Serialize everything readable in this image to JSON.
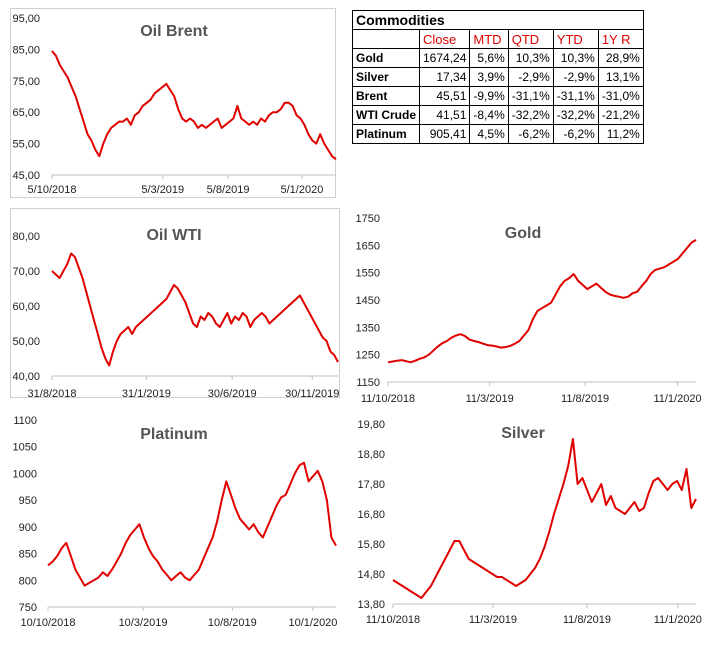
{
  "table": {
    "title": "Commodities",
    "headers": [
      "Close",
      "MTD",
      "QTD",
      "YTD",
      "1Y R"
    ],
    "rows": [
      {
        "name": "Gold",
        "values": [
          "1674,24",
          "5,6%",
          "10,3%",
          "10,3%",
          "28,9%"
        ]
      },
      {
        "name": "Silver",
        "values": [
          "17,34",
          "3,9%",
          "-2,9%",
          "-2,9%",
          "13,1%"
        ]
      },
      {
        "name": "Brent",
        "values": [
          "45,51",
          "-9,9%",
          "-31,1%",
          "-31,1%",
          "-31,0%"
        ]
      },
      {
        "name": "WTI Crude",
        "values": [
          "41,51",
          "-8,4%",
          "-32,2%",
          "-32,2%",
          "-21,2%"
        ]
      },
      {
        "name": "Platinum",
        "values": [
          "905,41",
          "4,5%",
          "-6,2%",
          "-6,2%",
          "11,2%"
        ]
      }
    ]
  },
  "line_color": "#e00000",
  "chart_data": [
    {
      "id": "brent",
      "type": "line",
      "title": "Oil Brent",
      "ylim": [
        45,
        95
      ],
      "yticks": [
        "95,00",
        "85,00",
        "75,00",
        "65,00",
        "55,00",
        "45,00"
      ],
      "xticks": [
        "5/10/2018",
        "5/3/2019",
        "5/8/2019",
        "5/1/2020"
      ],
      "xtick_pos": [
        0.0,
        0.39,
        0.62,
        0.88
      ],
      "series": [
        {
          "values": [
            84.5,
            83,
            80,
            78,
            76,
            73,
            70,
            66,
            62,
            58,
            56,
            53,
            51,
            55,
            58,
            60,
            61,
            62,
            62,
            63,
            61,
            64,
            65,
            67,
            68,
            69,
            71,
            72,
            73,
            74,
            72,
            70,
            66,
            63,
            62,
            63,
            62,
            60,
            61,
            60,
            61,
            62,
            63,
            60,
            61,
            62,
            63,
            67,
            63,
            62,
            61,
            62,
            61,
            63,
            62,
            64,
            65,
            65,
            66,
            68,
            68,
            67,
            64,
            63,
            61,
            58,
            56,
            55,
            58,
            55,
            53,
            51,
            50
          ]
        }
      ]
    },
    {
      "id": "wti",
      "type": "line",
      "title": "Oil WTI",
      "ylim": [
        40,
        80
      ],
      "yticks": [
        "80,00",
        "70,00",
        "60,00",
        "50,00",
        "40,00"
      ],
      "xticks": [
        "31/8/2018",
        "31/1/2019",
        "30/6/2019",
        "30/11/2019"
      ],
      "xtick_pos": [
        0.0,
        0.33,
        0.63,
        0.91
      ],
      "series": [
        {
          "values": [
            70,
            69,
            68,
            70,
            72,
            75,
            74,
            71,
            68,
            64,
            60,
            56,
            52,
            48,
            45,
            43,
            47,
            50,
            52,
            53,
            54,
            52,
            54,
            55,
            56,
            57,
            58,
            59,
            60,
            61,
            62,
            64,
            66,
            65,
            63,
            61,
            58,
            55,
            54,
            57,
            56,
            58,
            57,
            55,
            54,
            56,
            58,
            55,
            57,
            56,
            58,
            57,
            54,
            56,
            57,
            58,
            57,
            55,
            56,
            57,
            58,
            59,
            60,
            61,
            62,
            63,
            61,
            59,
            57,
            55,
            53,
            51,
            50,
            47,
            46,
            44
          ]
        }
      ]
    },
    {
      "id": "gold",
      "type": "line",
      "title": "Gold",
      "ylim": [
        1150,
        1750
      ],
      "yticks": [
        "1750",
        "1650",
        "1550",
        "1450",
        "1350",
        "1250",
        "1150"
      ],
      "xticks": [
        "11/10/2018",
        "11/3/2019",
        "11/8/2019",
        "11/1/2020"
      ],
      "xtick_pos": [
        0.0,
        0.33,
        0.64,
        0.94
      ],
      "series": [
        {
          "values": [
            1222,
            1225,
            1228,
            1230,
            1226,
            1222,
            1228,
            1235,
            1240,
            1250,
            1265,
            1280,
            1292,
            1300,
            1312,
            1320,
            1325,
            1318,
            1305,
            1300,
            1296,
            1290,
            1285,
            1283,
            1280,
            1276,
            1278,
            1282,
            1290,
            1300,
            1320,
            1340,
            1380,
            1410,
            1420,
            1430,
            1440,
            1470,
            1500,
            1520,
            1530,
            1545,
            1520,
            1505,
            1490,
            1500,
            1510,
            1495,
            1480,
            1470,
            1465,
            1462,
            1458,
            1462,
            1475,
            1480,
            1500,
            1520,
            1545,
            1560,
            1565,
            1570,
            1580,
            1590,
            1600,
            1620,
            1640,
            1660,
            1670
          ]
        }
      ]
    },
    {
      "id": "platinum",
      "type": "line",
      "title": "Platinum",
      "ylim": [
        750,
        1100
      ],
      "yticks": [
        "1100",
        "1050",
        "1000",
        "950",
        "900",
        "850",
        "800",
        "750"
      ],
      "xticks": [
        "10/10/2018",
        "10/3/2019",
        "10/8/2019",
        "10/1/2020"
      ],
      "xtick_pos": [
        0.0,
        0.33,
        0.64,
        0.92
      ],
      "series": [
        {
          "values": [
            828,
            835,
            845,
            860,
            870,
            845,
            820,
            805,
            790,
            795,
            800,
            805,
            815,
            808,
            820,
            835,
            850,
            870,
            885,
            895,
            905,
            880,
            860,
            845,
            835,
            820,
            810,
            800,
            808,
            815,
            805,
            800,
            810,
            820,
            840,
            860,
            880,
            910,
            950,
            985,
            960,
            935,
            915,
            905,
            895,
            905,
            890,
            880,
            900,
            920,
            940,
            955,
            960,
            980,
            1000,
            1015,
            1020,
            985,
            995,
            1005,
            985,
            950,
            880,
            865
          ]
        }
      ]
    },
    {
      "id": "silver",
      "type": "line",
      "title": "Silver",
      "ylim": [
        13.8,
        19.8
      ],
      "yticks": [
        "19,80",
        "18,80",
        "17,80",
        "16,80",
        "15,80",
        "14,80",
        "13,80"
      ],
      "xticks": [
        "11/10/2018",
        "11/3/2019",
        "11/8/2019",
        "11/1/2020"
      ],
      "xtick_pos": [
        0.0,
        0.33,
        0.64,
        0.94
      ],
      "series": [
        {
          "values": [
            14.6,
            14.5,
            14.4,
            14.3,
            14.2,
            14.1,
            14.0,
            14.2,
            14.4,
            14.7,
            15.0,
            15.3,
            15.6,
            15.9,
            15.9,
            15.6,
            15.3,
            15.2,
            15.1,
            15.0,
            14.9,
            14.8,
            14.7,
            14.7,
            14.6,
            14.5,
            14.4,
            14.5,
            14.6,
            14.8,
            15.0,
            15.3,
            15.7,
            16.2,
            16.8,
            17.3,
            17.8,
            18.4,
            19.3,
            17.8,
            18.0,
            17.6,
            17.2,
            17.5,
            17.8,
            17.1,
            17.4,
            17.0,
            16.9,
            16.8,
            17.0,
            17.2,
            16.9,
            17.0,
            17.5,
            17.9,
            18.0,
            17.8,
            17.6,
            17.8,
            17.9,
            17.6,
            18.3,
            17.0,
            17.3
          ]
        }
      ]
    }
  ]
}
